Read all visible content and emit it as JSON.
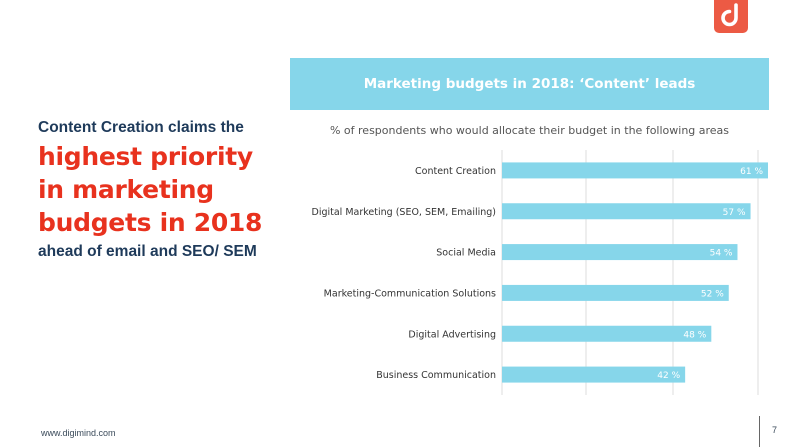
{
  "brand": {
    "logo_icon": "digimind-logo-icon",
    "color": "#ec5a44"
  },
  "left_text": {
    "intro": "Content Creation claims the",
    "highlight": "highest priority in marketing budgets in 2018",
    "outro": "ahead of email and SEO/ SEM"
  },
  "colors": {
    "bar": "#86d6ea",
    "highlight_text": "#e8321e",
    "dark_text": "#1e3a5a"
  },
  "chart_data": {
    "type": "bar",
    "orientation": "horizontal",
    "title": "Marketing budgets in 2018: ‘Content’ leads",
    "subtitle": "% of respondents who would allocate their budget in the following areas",
    "categories": [
      "Content Creation",
      "Digital Marketing (SEO, SEM, Emailing)",
      "Social Media",
      "Marketing-Communication Solutions",
      "Digital Advertising",
      "Business Communication"
    ],
    "values": [
      61,
      57,
      54,
      52,
      48,
      42
    ],
    "data_labels": [
      "61 %",
      "57 %",
      "54 %",
      "52 %",
      "48 %",
      "42 %"
    ],
    "unit": "%",
    "xlim": [
      0,
      61
    ],
    "grid": true,
    "legend": "none"
  },
  "footer": {
    "url": "www.digimind.com",
    "page_number": "7"
  }
}
